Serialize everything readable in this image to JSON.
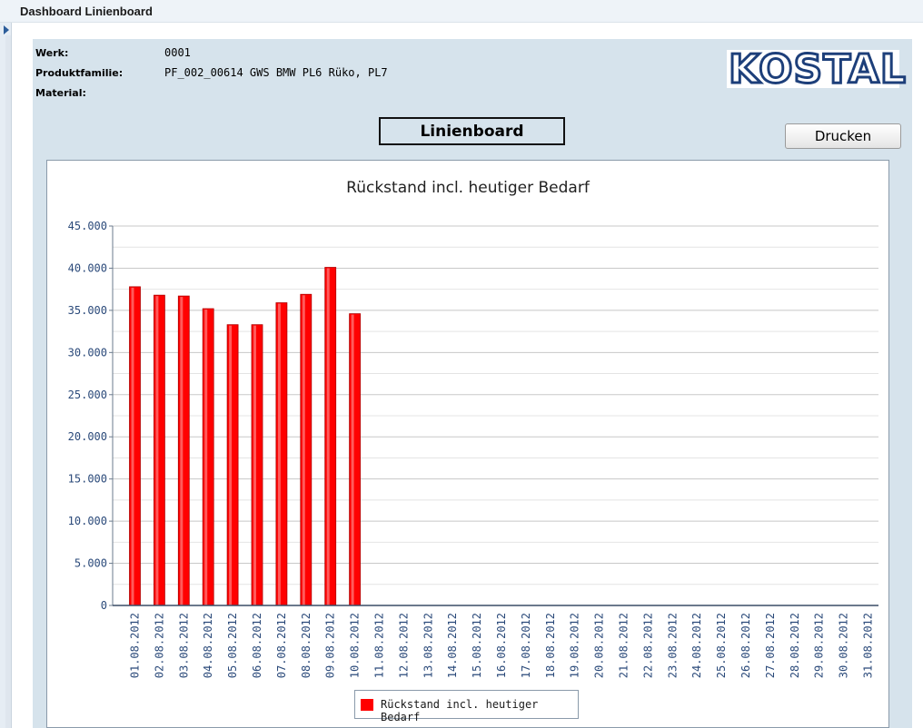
{
  "window": {
    "title": "Dashboard Linienboard"
  },
  "header": {
    "fields": [
      {
        "label": "Werk:",
        "value": "0001"
      },
      {
        "label": "Produktfamilie:",
        "value": "PF_002_00614 GWS BMW PL6 Rüko, PL7"
      },
      {
        "label": "Material:",
        "value": ""
      }
    ],
    "logo_text": "KOSTAL",
    "board_title": "Linienboard",
    "print_label": "Drucken"
  },
  "chart_data": {
    "type": "bar",
    "title": "Rückstand incl. heutiger Bedarf",
    "xlabel": "",
    "ylabel": "",
    "ylim": [
      0,
      45000
    ],
    "yticks": [
      "0",
      "5.000",
      "10.000",
      "15.000",
      "20.000",
      "25.000",
      "30.000",
      "35.000",
      "40.000",
      "45.000"
    ],
    "grid": true,
    "legend_position": "bottom",
    "bar_color": "#ff0000",
    "categories": [
      "01.08.2012",
      "02.08.2012",
      "03.08.2012",
      "04.08.2012",
      "05.08.2012",
      "06.08.2012",
      "07.08.2012",
      "08.08.2012",
      "09.08.2012",
      "10.08.2012",
      "11.08.2012",
      "12.08.2012",
      "13.08.2012",
      "14.08.2012",
      "15.08.2012",
      "16.08.2012",
      "17.08.2012",
      "18.08.2012",
      "19.08.2012",
      "20.08.2012",
      "21.08.2012",
      "22.08.2012",
      "23.08.2012",
      "24.08.2012",
      "25.08.2012",
      "26.08.2012",
      "27.08.2012",
      "28.08.2012",
      "29.08.2012",
      "30.08.2012",
      "31.08.2012"
    ],
    "series": [
      {
        "name": "Rückstand incl. heutiger Bedarf",
        "values": [
          37800,
          36800,
          36700,
          35200,
          33300,
          33300,
          35900,
          36900,
          40100,
          34600,
          0,
          0,
          0,
          0,
          0,
          0,
          0,
          0,
          0,
          0,
          0,
          0,
          0,
          0,
          0,
          0,
          0,
          0,
          0,
          0,
          0
        ]
      }
    ]
  }
}
